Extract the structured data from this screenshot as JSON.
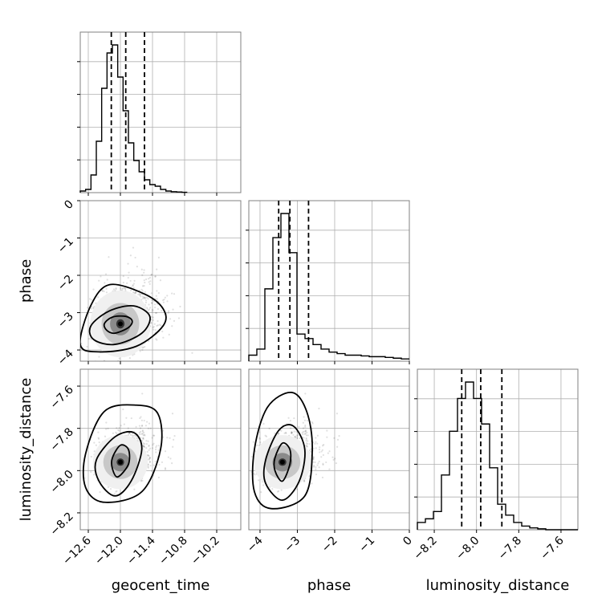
{
  "chart_data": {
    "type": "corner",
    "parameters": [
      {
        "name": "geocent_time",
        "range": [
          -12.75,
          -9.75
        ],
        "ticks": [
          -12.6,
          -12.0,
          -11.4,
          -10.8,
          -10.2
        ],
        "tick_labels": [
          "−12.6",
          "−12.0",
          "−11.4",
          "−10.8",
          "−10.2"
        ],
        "quantiles": [
          -12.17,
          -11.9,
          -11.55
        ],
        "hist_edges_start": -12.75,
        "hist_bin_width": 0.1,
        "hist_counts": [
          1,
          2,
          11,
          32,
          65,
          87,
          92,
          72,
          51,
          31,
          20,
          13,
          8,
          5,
          4,
          2,
          1,
          0.6,
          0.4,
          0.2
        ]
      },
      {
        "name": "phase",
        "range": [
          -4.3,
          0.0
        ],
        "ticks": [
          -4,
          -3,
          -2,
          -1,
          0
        ],
        "tick_labels": [
          "−4",
          "−3",
          "−2",
          "−1",
          "0"
        ],
        "quantiles": [
          -3.5,
          -3.2,
          -2.7
        ],
        "hist_edges_start": -4.3,
        "hist_bin_width": 0.215,
        "hist_counts": [
          4,
          8,
          48,
          82,
          98,
          72,
          18,
          15,
          11,
          8,
          6,
          5,
          4,
          4,
          3.5,
          3,
          3,
          2.5,
          2,
          1.5
        ]
      },
      {
        "name": "luminosity_distance",
        "range": [
          -8.28,
          -7.52
        ],
        "ticks": [
          -8.2,
          -8.0,
          -7.8,
          -7.6
        ],
        "tick_labels": [
          "−8.2",
          "−8.0",
          "−7.8",
          "−7.6"
        ],
        "quantiles": [
          -8.07,
          -7.98,
          -7.88
        ],
        "hist_edges_start": -8.28,
        "hist_bin_width": 0.038,
        "hist_counts": [
          4,
          6,
          10,
          30,
          54,
          72,
          81,
          72,
          58,
          34,
          14,
          8,
          4,
          2,
          1,
          0.5,
          0,
          0,
          0,
          0
        ]
      }
    ],
    "pairs": [
      {
        "x": "geocent_time",
        "y": "phase",
        "center": [
          -12.0,
          -3.3
        ],
        "spread": [
          0.22,
          0.35
        ],
        "contours": [
          [
            [
              -12.25,
              -3.48
            ],
            [
              -12.1,
              -3.55
            ],
            [
              -11.85,
              -3.4
            ],
            [
              -11.78,
              -3.22
            ],
            [
              -11.9,
              -3.1
            ],
            [
              -12.15,
              -3.12
            ],
            [
              -12.3,
              -3.3
            ]
          ],
          [
            [
              -12.5,
              -3.72
            ],
            [
              -12.1,
              -3.85
            ],
            [
              -11.6,
              -3.55
            ],
            [
              -11.45,
              -3.1
            ],
            [
              -11.75,
              -2.82
            ],
            [
              -12.2,
              -2.95
            ],
            [
              -12.55,
              -3.35
            ]
          ],
          [
            [
              -12.75,
              -3.85
            ],
            [
              -12.4,
              -4.05
            ],
            [
              -11.7,
              -3.9
            ],
            [
              -11.2,
              -3.35
            ],
            [
              -11.2,
              -2.9
            ],
            [
              -11.55,
              -2.5
            ],
            [
              -12.2,
              -2.25
            ],
            [
              -12.55,
              -2.8
            ]
          ]
        ]
      },
      {
        "x": "geocent_time",
        "y": "luminosity_distance",
        "center": [
          -12.0,
          -7.96
        ],
        "spread": [
          0.2,
          0.05
        ],
        "contours": [
          [
            [
              -12.15,
              -7.99
            ],
            [
              -12.05,
              -8.03
            ],
            [
              -11.85,
              -7.97
            ],
            [
              -11.85,
              -7.9
            ],
            [
              -12.0,
              -7.88
            ],
            [
              -12.15,
              -7.94
            ]
          ],
          [
            [
              -12.4,
              -8.05
            ],
            [
              -12.1,
              -8.12
            ],
            [
              -11.8,
              -8.05
            ],
            [
              -11.6,
              -7.9
            ],
            [
              -11.75,
              -7.82
            ],
            [
              -12.1,
              -7.84
            ],
            [
              -12.45,
              -7.95
            ]
          ],
          [
            [
              -12.65,
              -8.08
            ],
            [
              -12.3,
              -8.15
            ],
            [
              -11.6,
              -8.1
            ],
            [
              -11.25,
              -7.9
            ],
            [
              -11.3,
              -7.73
            ],
            [
              -11.7,
              -7.69
            ],
            [
              -12.3,
              -7.72
            ],
            [
              -12.65,
              -7.92
            ]
          ]
        ]
      },
      {
        "x": "phase",
        "y": "luminosity_distance",
        "center": [
          -3.4,
          -7.96
        ],
        "spread": [
          0.3,
          0.05
        ],
        "contours": [
          [
            [
              -3.6,
              -8.0
            ],
            [
              -3.4,
              -8.05
            ],
            [
              -3.2,
              -7.97
            ],
            [
              -3.2,
              -7.9
            ],
            [
              -3.4,
              -7.87
            ],
            [
              -3.6,
              -7.94
            ]
          ],
          [
            [
              -3.85,
              -8.06
            ],
            [
              -3.4,
              -8.14
            ],
            [
              -2.95,
              -8.05
            ],
            [
              -2.8,
              -7.9
            ],
            [
              -3.1,
              -7.79
            ],
            [
              -3.5,
              -7.81
            ],
            [
              -3.85,
              -7.95
            ]
          ],
          [
            [
              -4.15,
              -8.1
            ],
            [
              -3.7,
              -8.18
            ],
            [
              -2.8,
              -8.12
            ],
            [
              -2.6,
              -7.9
            ],
            [
              -2.75,
              -7.72
            ],
            [
              -3.15,
              -7.63
            ],
            [
              -3.8,
              -7.7
            ],
            [
              -4.15,
              -7.9
            ]
          ]
        ]
      }
    ],
    "grid": true
  }
}
